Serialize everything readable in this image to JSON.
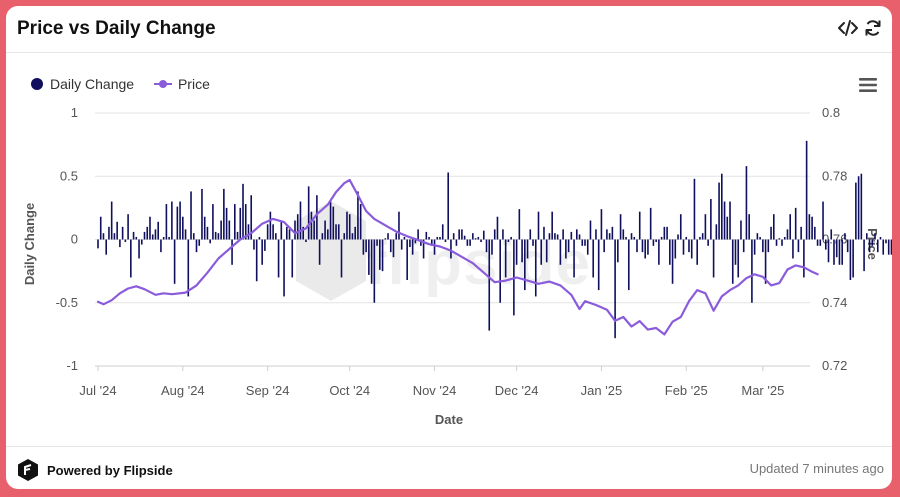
{
  "header": {
    "title": "Price vs Daily Change"
  },
  "icons": {
    "embed": "code-icon",
    "refresh": "refresh-icon",
    "menu": "hamburger-menu-icon",
    "brand": "flipside-logo-icon"
  },
  "footer": {
    "brand_label": "Powered by Flipside",
    "updated_label": "Updated 7 minutes ago"
  },
  "colors": {
    "daily_change": "#0f0f5e",
    "price": "#8a5cdb",
    "background": "#e8606b"
  },
  "chart_data": {
    "type": "bar+line",
    "xlabel": "Date",
    "ylabel_left": "Daily Change",
    "ylabel_right": "Price",
    "ylim_left": [
      -1,
      1
    ],
    "ylim_right": [
      0.72,
      0.8
    ],
    "yticks_left": [
      "1",
      "0.5",
      "0",
      "-0.5",
      "-1"
    ],
    "yticks_right": [
      "0.8",
      "0.78",
      "0.76",
      "0.74",
      "0.72"
    ],
    "xticks": [
      "Jul '24",
      "Aug '24",
      "Sep '24",
      "Oct '24",
      "Nov '24",
      "Dec '24",
      "Jan '25",
      "Feb '25",
      "Mar '25"
    ],
    "x_start": "2024-07-01",
    "legend": [
      "Daily Change",
      "Price"
    ],
    "legend_position": "top-left",
    "grid": "horizontal",
    "series": [
      {
        "name": "Daily Change",
        "type": "bar",
        "values": [
          -0.07,
          0.18,
          0.05,
          -0.12,
          0.1,
          0.3,
          0.05,
          0.14,
          -0.06,
          0.1,
          -0.02,
          0.2,
          -0.3,
          0.06,
          0.02,
          -0.15,
          -0.04,
          0.06,
          0.1,
          0.18,
          0.04,
          0.08,
          0.14,
          -0.1,
          0.02,
          0.28,
          0.02,
          0.3,
          -0.35,
          0.26,
          0.3,
          0.18,
          0.08,
          -0.45,
          0.38,
          0.05,
          -0.1,
          -0.05,
          0.4,
          0.18,
          0.1,
          -0.03,
          0.28,
          0.06,
          0.05,
          0.15,
          0.4,
          0.25,
          0.15,
          -0.2,
          0.28,
          0.06,
          0.25,
          0.44,
          0.28,
          0.12,
          0.35,
          -0.08,
          -0.33,
          0.02,
          -0.2,
          -0.09,
          0.12,
          0.22,
          0.12,
          0.05,
          -0.3,
          0.15,
          -0.45,
          0.1,
          0.08,
          -0.3,
          0.15,
          0.2,
          0.3,
          0.1,
          -0.02,
          0.42,
          0.22,
          0.15,
          0.35,
          -0.2,
          0.05,
          0.15,
          0.08,
          0.3,
          0.26,
          0.12,
          0.12,
          -0.3,
          0.05,
          0.22,
          0.2,
          0.05,
          0.1,
          0.38,
          0.28,
          -0.12,
          -0.1,
          -0.28,
          -0.35,
          -0.5,
          -0.05,
          -0.24,
          -0.25,
          0.01,
          0.05,
          -0.1,
          -0.14,
          0.05,
          0.22,
          -0.08,
          0.02,
          -0.32,
          -0.06,
          -0.12,
          -0.03,
          0.08,
          -0.05,
          -0.15,
          0.06,
          0.02,
          -0.05,
          -0.12,
          0.02,
          0.02,
          0.12,
          -0.02,
          0.53,
          -0.15,
          0.05,
          -0.05,
          0.08,
          0.08,
          0.03,
          -0.05,
          -0.05,
          0.05,
          0.01,
          0.02,
          -0.02,
          0.07,
          -0.1,
          -0.72,
          -0.12,
          0.08,
          0.18,
          -0.5,
          0.08,
          -0.3,
          -0.02,
          0.02,
          -0.6,
          -0.2,
          0.24,
          -0.18,
          -0.4,
          -0.15,
          0.08,
          -0.05,
          -0.45,
          0.22,
          -0.2,
          0.1,
          -0.18,
          0.05,
          0.22,
          0.05,
          0.04,
          -0.2,
          0.08,
          -0.15,
          -0.1,
          0.06,
          -0.3,
          0.08,
          0.04,
          -0.05,
          -0.05,
          -0.12,
          0.15,
          -0.3,
          0.08,
          -0.4,
          0.24,
          -0.1,
          0.08,
          0.05,
          0.1,
          -0.78,
          -0.18,
          0.2,
          0.08,
          0.02,
          -0.4,
          0.05,
          0.02,
          -0.1,
          0.22,
          -0.1,
          -0.15,
          -0.12,
          0.25,
          -0.05,
          -0.02,
          -0.2,
          0.02,
          0.1,
          0.1,
          -0.2,
          -0.35,
          -0.15,
          0.04,
          0.2,
          -0.12,
          0.02,
          -0.1,
          -0.15,
          0.48,
          -0.2,
          0.02,
          0.05,
          0.2,
          -0.05,
          0.32,
          -0.3,
          0.12,
          0.45,
          0.52,
          0.3,
          0.18,
          0.3,
          -0.35,
          -0.2,
          -0.3,
          0.15,
          -0.1,
          0.58,
          0.2,
          -0.5,
          -0.12,
          0.05,
          0.02,
          -0.1,
          -0.35,
          -0.1,
          0.1,
          0.2,
          -0.05,
          0.01,
          -0.05,
          0.02,
          0.08,
          0.2,
          -0.15,
          0.25,
          -0.1,
          0.1,
          -0.3,
          0.78,
          0.2,
          0.18,
          0.1,
          -0.05,
          -0.05,
          0.3,
          -0.08,
          -0.18,
          0.08,
          -0.2,
          -0.14,
          -0.2,
          -0.2,
          0.05,
          -0.1,
          -0.32,
          -0.3,
          0.45,
          0.5,
          0.52,
          -0.25,
          0.05,
          -0.1,
          -0.05,
          0.05,
          -0.1,
          0.02,
          -0.12,
          -0.03,
          -0.12,
          -0.12,
          -0.05,
          0.12
        ]
      },
      {
        "name": "Price",
        "type": "line",
        "points": [
          [
            "2024-07-01",
            0.7403
          ],
          [
            "2024-07-03",
            0.7395
          ],
          [
            "2024-07-06",
            0.7408
          ],
          [
            "2024-07-09",
            0.743
          ],
          [
            "2024-07-12",
            0.7445
          ],
          [
            "2024-07-15",
            0.7452
          ],
          [
            "2024-07-18",
            0.7443
          ],
          [
            "2024-07-22",
            0.7425
          ],
          [
            "2024-07-25",
            0.743
          ],
          [
            "2024-07-28",
            0.7427
          ],
          [
            "2024-08-02",
            0.7432
          ],
          [
            "2024-08-06",
            0.7455
          ],
          [
            "2024-08-10",
            0.7495
          ],
          [
            "2024-08-14",
            0.754
          ],
          [
            "2024-08-18",
            0.757
          ],
          [
            "2024-08-22",
            0.76
          ],
          [
            "2024-08-26",
            0.762
          ],
          [
            "2024-08-30",
            0.765
          ],
          [
            "2024-09-03",
            0.7665
          ],
          [
            "2024-09-07",
            0.7655
          ],
          [
            "2024-09-11",
            0.762
          ],
          [
            "2024-09-15",
            0.7635
          ],
          [
            "2024-09-19",
            0.768
          ],
          [
            "2024-09-23",
            0.771
          ],
          [
            "2024-09-26",
            0.775
          ],
          [
            "2024-09-29",
            0.7778
          ],
          [
            "2024-10-01",
            0.7788
          ],
          [
            "2024-10-04",
            0.774
          ],
          [
            "2024-10-07",
            0.769
          ],
          [
            "2024-10-10",
            0.7665
          ],
          [
            "2024-10-14",
            0.7645
          ],
          [
            "2024-10-18",
            0.7625
          ],
          [
            "2024-10-22",
            0.761
          ],
          [
            "2024-10-26",
            0.7598
          ],
          [
            "2024-10-30",
            0.7585
          ],
          [
            "2024-11-03",
            0.7578
          ],
          [
            "2024-11-07",
            0.7565
          ],
          [
            "2024-11-11",
            0.7545
          ],
          [
            "2024-11-15",
            0.7525
          ],
          [
            "2024-11-19",
            0.7495
          ],
          [
            "2024-11-23",
            0.7465
          ],
          [
            "2024-11-27",
            0.747
          ],
          [
            "2024-12-01",
            0.748
          ],
          [
            "2024-12-05",
            0.747
          ],
          [
            "2024-12-09",
            0.746
          ],
          [
            "2024-12-13",
            0.7467
          ],
          [
            "2024-12-17",
            0.7455
          ],
          [
            "2024-12-21",
            0.7425
          ],
          [
            "2024-12-24",
            0.738
          ],
          [
            "2024-12-26",
            0.7405
          ],
          [
            "2024-12-30",
            0.7393
          ],
          [
            "2025-01-03",
            0.7378
          ],
          [
            "2025-01-06",
            0.7343
          ],
          [
            "2025-01-09",
            0.7355
          ],
          [
            "2025-01-12",
            0.7325
          ],
          [
            "2025-01-15",
            0.7342
          ],
          [
            "2025-01-18",
            0.7315
          ],
          [
            "2025-01-21",
            0.732
          ],
          [
            "2025-01-24",
            0.73
          ],
          [
            "2025-01-27",
            0.734
          ],
          [
            "2025-01-30",
            0.7355
          ],
          [
            "2025-02-02",
            0.7405
          ],
          [
            "2025-02-05",
            0.744
          ],
          [
            "2025-02-08",
            0.743
          ],
          [
            "2025-02-11",
            0.7375
          ],
          [
            "2025-02-14",
            0.742
          ],
          [
            "2025-02-17",
            0.744
          ],
          [
            "2025-02-20",
            0.7455
          ],
          [
            "2025-02-23",
            0.7478
          ],
          [
            "2025-02-26",
            0.749
          ],
          [
            "2025-03-01",
            0.7482
          ],
          [
            "2025-03-04",
            0.7455
          ],
          [
            "2025-03-07",
            0.7462
          ],
          [
            "2025-03-10",
            0.7505
          ],
          [
            "2025-03-13",
            0.7518
          ],
          [
            "2025-03-16",
            0.7512
          ],
          [
            "2025-03-19",
            0.7498
          ],
          [
            "2025-03-21",
            0.749
          ]
        ]
      }
    ]
  }
}
